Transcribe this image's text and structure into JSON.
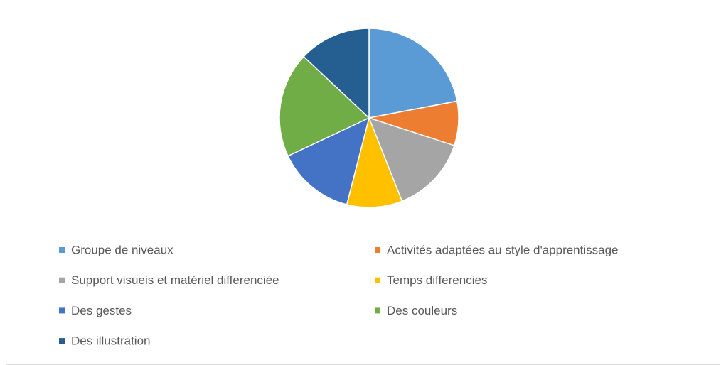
{
  "chart_data": {
    "type": "pie",
    "categories": [
      "Groupe de niveaux",
      "Activités adaptées au style d'apprentissage",
      "Support visueis et matériel differenciée",
      "Temps differencies",
      "Des gestes",
      "Des couleurs",
      "Des illustration"
    ],
    "values": [
      22,
      8,
      14,
      10,
      14,
      19,
      13
    ],
    "colors": [
      "#5b9bd5",
      "#ed7d31",
      "#a5a5a5",
      "#ffc000",
      "#4472c4",
      "#70ad47",
      "#255e91"
    ],
    "legend": "bottom"
  }
}
